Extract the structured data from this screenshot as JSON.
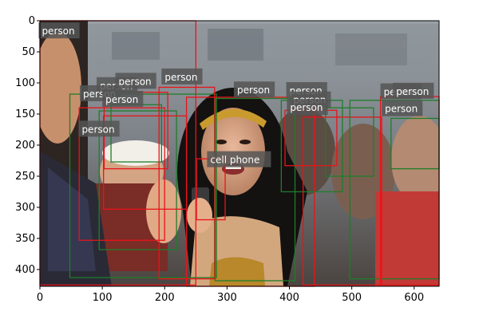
{
  "figure": {
    "image_description": "Crowd photo: woman in costume with gold headband smiling, holding a phone; people around her",
    "axes": {
      "xlim": [
        0,
        640
      ],
      "ylim": [
        427,
        0
      ],
      "xticks": [
        0,
        100,
        200,
        300,
        400,
        500,
        600
      ],
      "yticks": [
        0,
        50,
        100,
        150,
        200,
        250,
        300,
        350,
        400
      ]
    },
    "colors": {
      "red": "#e8141a",
      "green": "#1e7d2a",
      "label_bg": "#555555"
    },
    "boxes": [
      {
        "color": "red",
        "x1": 0,
        "y1": 0,
        "x2": 250,
        "y2": 425
      },
      {
        "color": "green",
        "x1": 48,
        "y1": 118,
        "x2": 283,
        "y2": 413
      },
      {
        "color": "red",
        "x1": 63,
        "y1": 140,
        "x2": 200,
        "y2": 353
      },
      {
        "color": "green",
        "x1": 95,
        "y1": 145,
        "x2": 219,
        "y2": 368
      },
      {
        "color": "red",
        "x1": 102,
        "y1": 153,
        "x2": 235,
        "y2": 303
      },
      {
        "color": "red",
        "x1": 103,
        "y1": 115,
        "x2": 205,
        "y2": 238
      },
      {
        "color": "green",
        "x1": 114,
        "y1": 135,
        "x2": 195,
        "y2": 227
      },
      {
        "color": "red",
        "x1": 191,
        "y1": 107,
        "x2": 280,
        "y2": 415
      },
      {
        "color": "red",
        "x1": 235,
        "y1": 123,
        "x2": 440,
        "y2": 427
      },
      {
        "color": "green",
        "x1": 281,
        "y1": 125,
        "x2": 409,
        "y2": 418
      },
      {
        "color": "red",
        "x1": 251,
        "y1": 222,
        "x2": 297,
        "y2": 320
      },
      {
        "color": "green",
        "x1": 387,
        "y1": 128,
        "x2": 485,
        "y2": 275
      },
      {
        "color": "red",
        "x1": 393,
        "y1": 144,
        "x2": 476,
        "y2": 233
      },
      {
        "color": "red",
        "x1": 422,
        "y1": 155,
        "x2": 548,
        "y2": 425
      },
      {
        "color": "green",
        "x1": 458,
        "y1": 140,
        "x2": 535,
        "y2": 250
      },
      {
        "color": "green",
        "x1": 497,
        "y1": 128,
        "x2": 640,
        "y2": 415
      },
      {
        "color": "red",
        "x1": 546,
        "y1": 122,
        "x2": 640,
        "y2": 425
      },
      {
        "color": "green",
        "x1": 563,
        "y1": 157,
        "x2": 640,
        "y2": 238
      }
    ],
    "labels": [
      {
        "text": "person",
        "x": -2,
        "y": 22
      },
      {
        "text": "person",
        "x": 91,
        "y": 110
      },
      {
        "text": "person",
        "x": 121,
        "y": 103
      },
      {
        "text": "person",
        "x": 195,
        "y": 96
      },
      {
        "text": "person",
        "x": 64,
        "y": 123
      },
      {
        "text": "person",
        "x": 100,
        "y": 132
      },
      {
        "text": "person",
        "x": 62,
        "y": 180
      },
      {
        "text": "person",
        "x": 311,
        "y": 117
      },
      {
        "text": "person",
        "x": 395,
        "y": 118
      },
      {
        "text": "person",
        "x": 401,
        "y": 133
      },
      {
        "text": "person",
        "x": 396,
        "y": 145
      },
      {
        "text": "person",
        "x": 546,
        "y": 120
      },
      {
        "text": "person",
        "x": 566,
        "y": 119
      },
      {
        "text": "person",
        "x": 548,
        "y": 147
      },
      {
        "text": "cell phone",
        "x": 268,
        "y": 229
      }
    ]
  }
}
